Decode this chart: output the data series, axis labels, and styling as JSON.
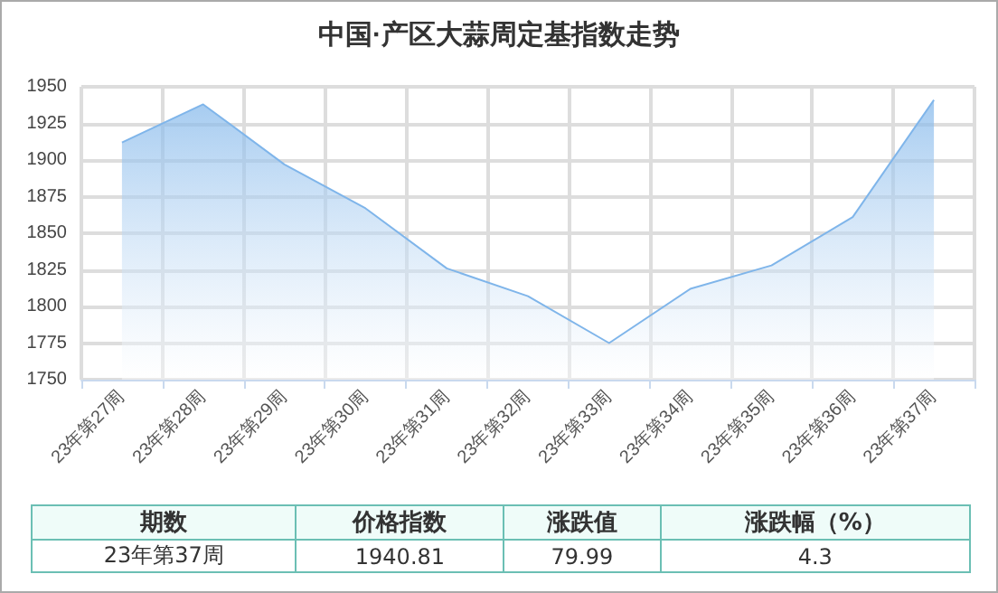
{
  "chart_data": {
    "type": "area",
    "title": "中国·产区大蒜周定基指数走势",
    "categories": [
      "23年第27周",
      "23年第28周",
      "23年第29周",
      "23年第30周",
      "23年第31周",
      "23年第32周",
      "23年第33周",
      "23年第34周",
      "23年第35周",
      "23年第36周",
      "23年第37周"
    ],
    "series": [
      {
        "color": "#7fb5ea",
        "values": [
          1912,
          1938,
          1897,
          1867,
          1826,
          1807,
          1775,
          1812,
          1828,
          1861,
          1941
        ]
      }
    ],
    "ylim": [
      1750,
      1950
    ],
    "yticks": [
      1750,
      1775,
      1800,
      1825,
      1850,
      1875,
      1900,
      1925,
      1950
    ],
    "grid": true,
    "marker": "none",
    "annotations": [
      "期数",
      "价格指数",
      "涨跌值",
      "涨跌幅（%）",
      "23年第37周",
      "1940.81",
      "79.99",
      "4.3"
    ]
  }
}
